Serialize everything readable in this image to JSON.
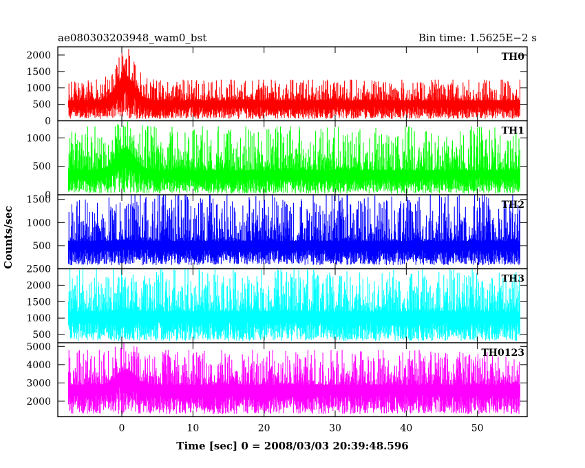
{
  "header": {
    "title": "ae080303203948_wam0_bst",
    "bin_time": "Bin time: 1.5625E−2 s"
  },
  "chart_data": {
    "type": "line",
    "xlabel": "Time [sec] 0 = 2008/03/03 20:39:48.596",
    "ylabel": "Counts/sec",
    "xlim": [
      -9,
      57
    ],
    "x_ticks": [
      0,
      10,
      20,
      30,
      40,
      50
    ],
    "data_x_range": [
      -7.5,
      56
    ],
    "bin_time": 0.015625,
    "burst_peak_time": 0.5,
    "panels": [
      {
        "label": "TH0",
        "color": "#ff0000",
        "ylim": [
          0,
          2250
        ],
        "yticks": [
          0,
          500,
          1000,
          1500,
          2000
        ],
        "baseline_mean": 620,
        "noise_low": 60,
        "noise_high": 1250,
        "burst_mean": 1350,
        "burst_high": 2250
      },
      {
        "label": "TH1",
        "color": "#00ff00",
        "ylim": [
          0,
          1300
        ],
        "yticks": [
          0,
          500,
          1000
        ],
        "baseline_mean": 430,
        "noise_low": 20,
        "noise_high": 1200,
        "burst_mean": 820,
        "burst_high": 1300
      },
      {
        "label": "TH2",
        "color": "#0000ff",
        "ylim": [
          0,
          1600
        ],
        "yticks": [
          0,
          500,
          1000,
          1500
        ],
        "baseline_mean": 600,
        "noise_low": 80,
        "noise_high": 1600,
        "burst_mean": 620,
        "burst_high": 1600
      },
      {
        "label": "TH3",
        "color": "#00ffff",
        "ylim": [
          250,
          2500
        ],
        "yticks": [
          500,
          1000,
          1500,
          2000,
          2500
        ],
        "baseline_mean": 1200,
        "noise_low": 300,
        "noise_high": 2500,
        "burst_mean": 1250,
        "burst_high": 2500
      },
      {
        "label": "TH0123",
        "color": "#ff00ff",
        "ylim": [
          1150,
          5200
        ],
        "yticks": [
          2000,
          3000,
          4000,
          5000
        ],
        "baseline_mean": 2900,
        "noise_low": 1300,
        "noise_high": 4800,
        "burst_mean": 3700,
        "burst_high": 5200
      }
    ]
  }
}
